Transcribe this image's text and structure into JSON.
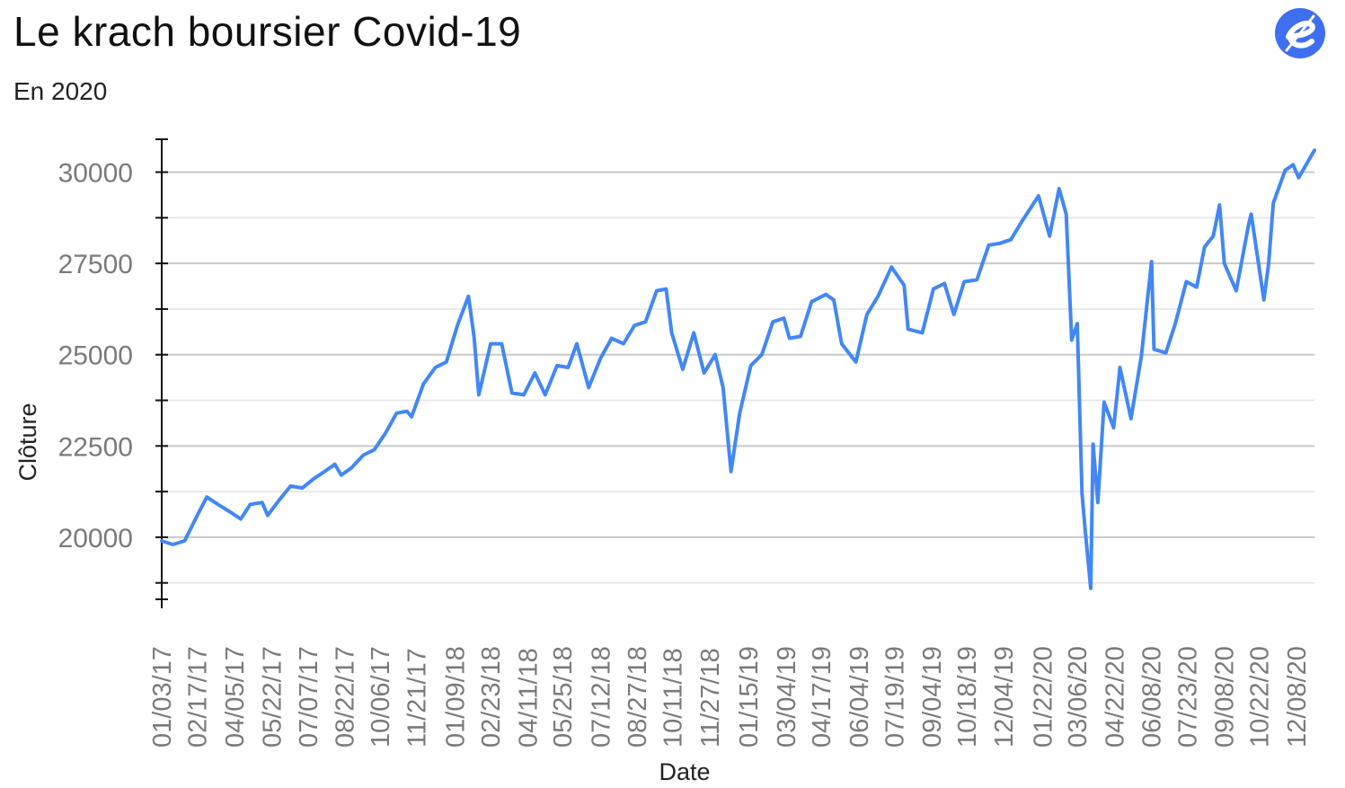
{
  "header": {
    "title": "Le krach boursier Covid-19",
    "subtitle": "En 2020",
    "logo_icon": "brand-e-logo-icon",
    "brand_color": "#3f6ff0"
  },
  "chart_data": {
    "type": "line",
    "title": "Le krach boursier Covid-19",
    "subtitle": "En 2020",
    "xlabel": "Date",
    "ylabel": "Clôture",
    "ylim": [
      18300,
      30900
    ],
    "yticks": [
      20000,
      22500,
      25000,
      27500,
      30000
    ],
    "grid": true,
    "line_color": "#4287f5",
    "x_tick_labels": [
      "01/03/17",
      "02/17/17",
      "04/05/17",
      "05/22/17",
      "07/07/17",
      "08/22/17",
      "10/06/17",
      "11/21/17",
      "01/09/18",
      "02/23/18",
      "04/11/18",
      "05/25/18",
      "07/12/18",
      "08/27/18",
      "10/11/18",
      "11/27/18",
      "01/15/19",
      "03/04/19",
      "04/17/19",
      "06/04/19",
      "07/19/19",
      "09/04/19",
      "10/18/19",
      "12/04/19",
      "01/22/20",
      "03/06/20",
      "04/22/20",
      "06/08/20",
      "07/23/20",
      "09/08/20",
      "10/22/20",
      "12/08/20"
    ],
    "series": [
      {
        "values": [
          [
            "01/03/17",
            19900
          ],
          [
            "01/17/17",
            19800
          ],
          [
            "02/01/17",
            19900
          ],
          [
            "02/17/17",
            20600
          ],
          [
            "03/01/17",
            21100
          ],
          [
            "03/15/17",
            20900
          ],
          [
            "03/30/17",
            20700
          ],
          [
            "04/13/17",
            20500
          ],
          [
            "04/25/17",
            20900
          ],
          [
            "05/10/17",
            20950
          ],
          [
            "05/17/17",
            20600
          ],
          [
            "05/31/17",
            21000
          ],
          [
            "06/15/17",
            21400
          ],
          [
            "06/30/17",
            21350
          ],
          [
            "07/14/17",
            21600
          ],
          [
            "07/28/17",
            21800
          ],
          [
            "08/10/17",
            22000
          ],
          [
            "08/18/17",
            21700
          ],
          [
            "08/31/17",
            21900
          ],
          [
            "09/15/17",
            22250
          ],
          [
            "09/29/17",
            22400
          ],
          [
            "10/13/17",
            22850
          ],
          [
            "10/27/17",
            23400
          ],
          [
            "11/09/17",
            23450
          ],
          [
            "11/15/17",
            23300
          ],
          [
            "11/30/17",
            24200
          ],
          [
            "12/15/17",
            24650
          ],
          [
            "12/29/17",
            24800
          ],
          [
            "01/12/18",
            25800
          ],
          [
            "01/26/18",
            26600
          ],
          [
            "02/02/18",
            25500
          ],
          [
            "02/08/18",
            23900
          ],
          [
            "02/23/18",
            25300
          ],
          [
            "03/09/18",
            25300
          ],
          [
            "03/22/18",
            23950
          ],
          [
            "04/06/18",
            23900
          ],
          [
            "04/20/18",
            24500
          ],
          [
            "05/03/18",
            23900
          ],
          [
            "05/18/18",
            24700
          ],
          [
            "06/01/18",
            24650
          ],
          [
            "06/12/18",
            25300
          ],
          [
            "06/27/18",
            24100
          ],
          [
            "07/12/18",
            24900
          ],
          [
            "07/26/18",
            25450
          ],
          [
            "08/10/18",
            25300
          ],
          [
            "08/24/18",
            25800
          ],
          [
            "09/07/18",
            25900
          ],
          [
            "09/21/18",
            26750
          ],
          [
            "10/03/18",
            26800
          ],
          [
            "10/10/18",
            25600
          ],
          [
            "10/24/18",
            24600
          ],
          [
            "11/07/18",
            25600
          ],
          [
            "11/20/18",
            24500
          ],
          [
            "12/04/18",
            25000
          ],
          [
            "12/14/18",
            24100
          ],
          [
            "12/24/18",
            21800
          ],
          [
            "01/04/19",
            23400
          ],
          [
            "01/18/19",
            24700
          ],
          [
            "02/01/19",
            25000
          ],
          [
            "02/15/19",
            25900
          ],
          [
            "03/01/19",
            26000
          ],
          [
            "03/08/19",
            25450
          ],
          [
            "03/22/19",
            25500
          ],
          [
            "04/05/19",
            26450
          ],
          [
            "04/23/19",
            26650
          ],
          [
            "05/03/19",
            26500
          ],
          [
            "05/13/19",
            25300
          ],
          [
            "05/31/19",
            24800
          ],
          [
            "06/14/19",
            26100
          ],
          [
            "06/28/19",
            26600
          ],
          [
            "07/15/19",
            27400
          ],
          [
            "07/31/19",
            26900
          ],
          [
            "08/05/19",
            25700
          ],
          [
            "08/23/19",
            25600
          ],
          [
            "09/06/19",
            26800
          ],
          [
            "09/20/19",
            26950
          ],
          [
            "10/02/19",
            26100
          ],
          [
            "10/15/19",
            27000
          ],
          [
            "10/31/19",
            27050
          ],
          [
            "11/15/19",
            28000
          ],
          [
            "11/29/19",
            28050
          ],
          [
            "12/13/19",
            28150
          ],
          [
            "12/27/19",
            28650
          ],
          [
            "01/17/20",
            29350
          ],
          [
            "01/31/20",
            28250
          ],
          [
            "02/12/20",
            29550
          ],
          [
            "02/21/20",
            28850
          ],
          [
            "02/28/20",
            25400
          ],
          [
            "03/06/20",
            25850
          ],
          [
            "03/12/20",
            21200
          ],
          [
            "03/16/20",
            20200
          ],
          [
            "03/23/20",
            18600
          ],
          [
            "03/26/20",
            22550
          ],
          [
            "04/01/20",
            20950
          ],
          [
            "04/09/20",
            23700
          ],
          [
            "04/21/20",
            23000
          ],
          [
            "04/29/20",
            24650
          ],
          [
            "05/13/20",
            23250
          ],
          [
            "05/26/20",
            24950
          ],
          [
            "06/08/20",
            27550
          ],
          [
            "06/11/20",
            25150
          ],
          [
            "06/26/20",
            25050
          ],
          [
            "07/08/20",
            25850
          ],
          [
            "07/22/20",
            27000
          ],
          [
            "08/04/20",
            26850
          ],
          [
            "08/14/20",
            27950
          ],
          [
            "08/25/20",
            28250
          ],
          [
            "09/02/20",
            29100
          ],
          [
            "09/08/20",
            27500
          ],
          [
            "09/23/20",
            26750
          ],
          [
            "10/09/20",
            28600
          ],
          [
            "10/12/20",
            28850
          ],
          [
            "10/28/20",
            26500
          ],
          [
            "11/03/20",
            27500
          ],
          [
            "11/09/20",
            29150
          ],
          [
            "11/24/20",
            30050
          ],
          [
            "12/04/20",
            30200
          ],
          [
            "12/11/20",
            29850
          ],
          [
            "12/31/20",
            30600
          ]
        ]
      }
    ]
  },
  "x_axis_title": "Date",
  "y_axis_title": "Clôture"
}
